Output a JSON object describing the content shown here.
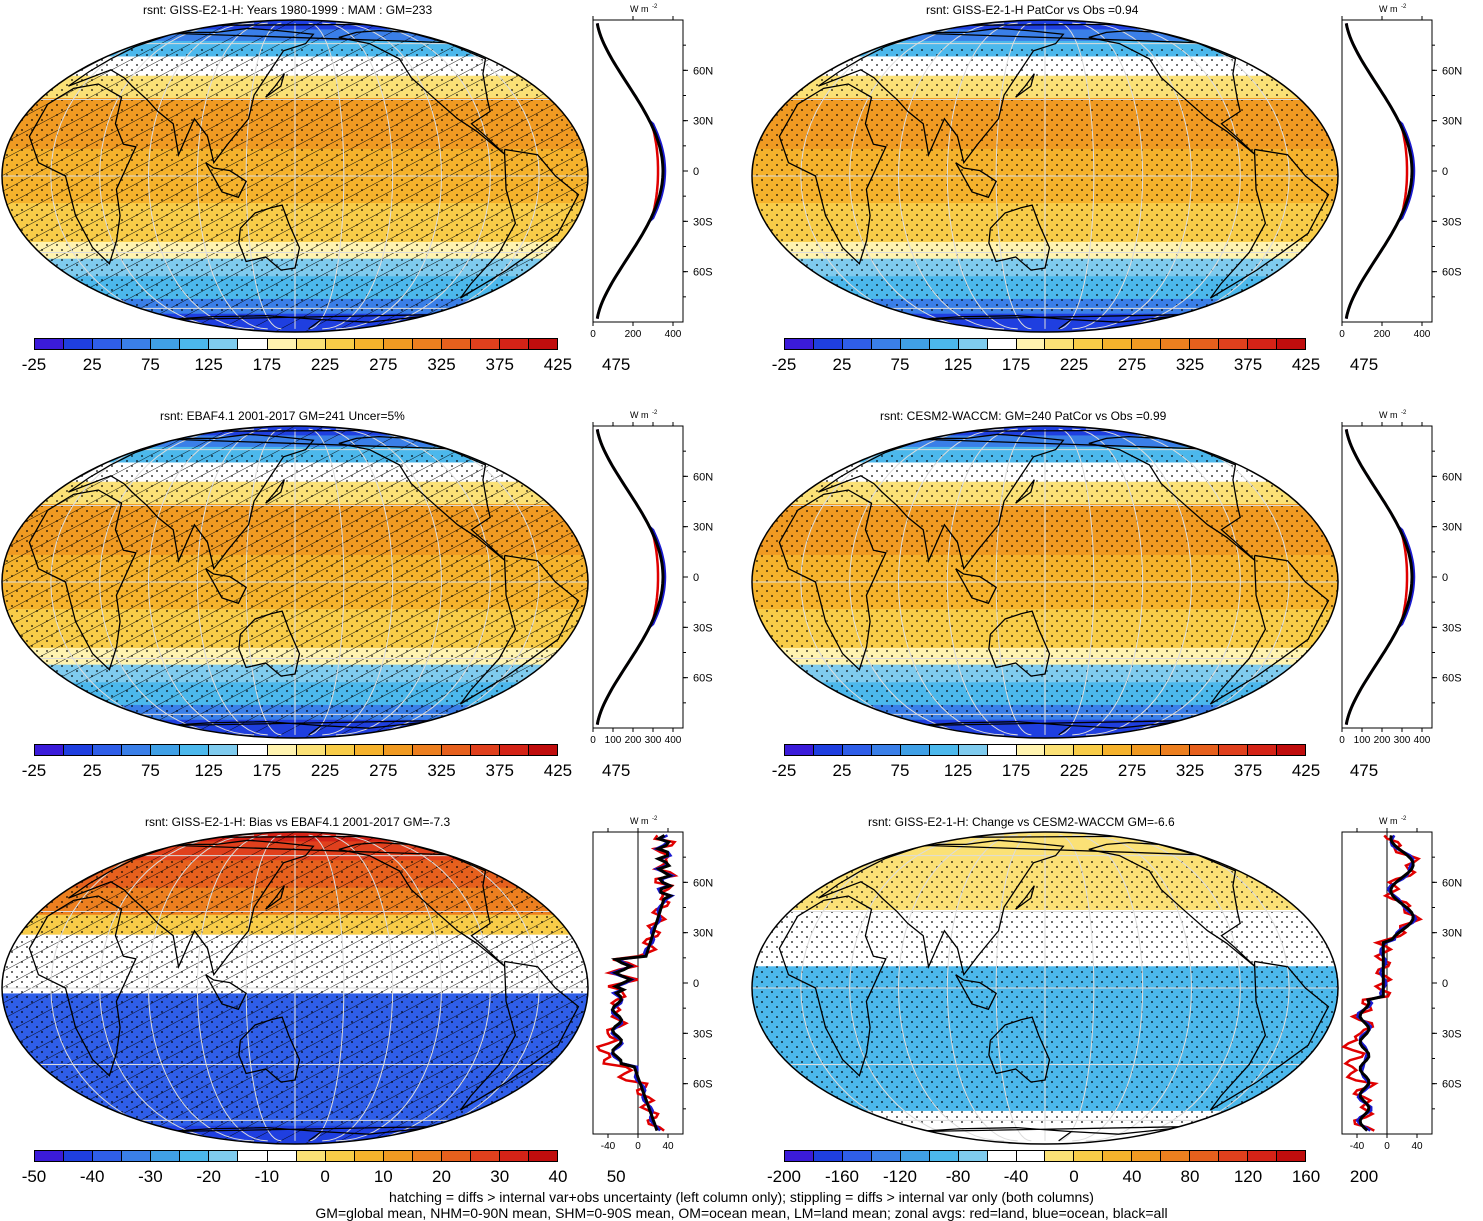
{
  "panels": [
    {
      "id": "p1",
      "title": "rsnt: GISS-E2-1-H: Years 1980-1999 : MAM : GM=233",
      "scale": "abs",
      "hatch": true,
      "stipple": true,
      "cb_labels": [
        "-25",
        "25",
        "75",
        "125",
        "175",
        "225",
        "275",
        "325",
        "375",
        "425",
        "475"
      ],
      "z_xticks": [
        "0",
        "200",
        "400"
      ],
      "z_range": [
        0,
        450
      ],
      "z_zero": false
    },
    {
      "id": "p2",
      "title": "rsnt: GISS-E2-1-H PatCor vs Obs =0.94",
      "scale": "abs",
      "hatch": false,
      "stipple": true,
      "cb_labels": [
        "-25",
        "25",
        "75",
        "125",
        "175",
        "225",
        "275",
        "325",
        "375",
        "425",
        "475"
      ],
      "z_xticks": [
        "0",
        "200",
        "400"
      ],
      "z_range": [
        0,
        450
      ],
      "z_zero": false
    },
    {
      "id": "p3",
      "title": "rsnt: EBAF4.1 2001-2017 GM=241 Uncer=5%",
      "scale": "abs",
      "hatch": true,
      "stipple": true,
      "cb_labels": [
        "-25",
        "25",
        "75",
        "125",
        "175",
        "225",
        "275",
        "325",
        "375",
        "425",
        "475"
      ],
      "z_xticks": [
        "0",
        "100",
        "200",
        "300",
        "400"
      ],
      "z_range": [
        0,
        450
      ],
      "z_zero": false
    },
    {
      "id": "p4",
      "title": "rsnt: CESM2-WACCM: GM=240 PatCor vs Obs =0.99",
      "scale": "abs",
      "hatch": false,
      "stipple": true,
      "cb_labels": [
        "-25",
        "25",
        "75",
        "125",
        "175",
        "225",
        "275",
        "325",
        "375",
        "425",
        "475"
      ],
      "z_xticks": [
        "0",
        "100",
        "200",
        "300",
        "400"
      ],
      "z_range": [
        0,
        450
      ],
      "z_zero": false
    },
    {
      "id": "p5",
      "title": "rsnt: GISS-E2-1-H: Bias vs EBAF4.1 2001-2017 GM=-7.3",
      "scale": "bias",
      "hatch": true,
      "stipple": true,
      "cb_labels": [
        "-50",
        "-40",
        "-30",
        "-20",
        "-10",
        "0",
        "10",
        "20",
        "30",
        "40",
        "50"
      ],
      "z_xticks": [
        "-40",
        "0",
        "40"
      ],
      "z_range": [
        -60,
        60
      ],
      "z_zero": true
    },
    {
      "id": "p6",
      "title": "rsnt: GISS-E2-1-H: Change vs CESM2-WACCM GM=-6.6",
      "scale": "change",
      "hatch": false,
      "stipple": true,
      "cb_labels": [
        "-200",
        "-160",
        "-120",
        "-80",
        "-40",
        "0",
        "40",
        "80",
        "120",
        "160",
        "200"
      ],
      "z_xticks": [
        "-40",
        "0",
        "40"
      ],
      "z_range": [
        -60,
        60
      ],
      "z_zero": true
    }
  ],
  "lat_labels": [
    "60N",
    "30N",
    "0",
    "30S",
    "60S"
  ],
  "units_label": "W m",
  "units_exp": "-2",
  "palettes": {
    "abs": [
      "#3b1bd9",
      "#1f3fe0",
      "#2f5ee8",
      "#3a7fe8",
      "#40a0e6",
      "#4cb8ec",
      "#7fcbee",
      "#ffffff",
      "#fff3b0",
      "#fbe176",
      "#f8cc48",
      "#f5b22c",
      "#f09a22",
      "#ec7f1f",
      "#e6601d",
      "#e0401d",
      "#d42317",
      "#c00d0d"
    ],
    "bias": [
      "#3b1bd9",
      "#1f3fe0",
      "#2f5ee8",
      "#3a7fe8",
      "#40a0e6",
      "#4cb8ec",
      "#7fcbee",
      "#ffffff",
      "#ffffff",
      "#fbe176",
      "#f8cc48",
      "#f5b22c",
      "#f09a22",
      "#ec7f1f",
      "#e6601d",
      "#e0401d",
      "#d42317",
      "#c00d0d"
    ],
    "change": [
      "#3b1bd9",
      "#1f3fe0",
      "#2f5ee8",
      "#3a7fe8",
      "#40a0e6",
      "#4cb8ec",
      "#7fcbee",
      "#ffffff",
      "#ffffff",
      "#fbe176",
      "#f8cc48",
      "#f5b22c",
      "#f09a22",
      "#ec7f1f",
      "#e6601d",
      "#e0401d",
      "#d42317",
      "#c00d0d"
    ]
  },
  "footer": [
    "hatching = diffs > internal var+obs uncertainty (left column only); stippling = diffs > internal var only (both columns)",
    "GM=global mean, NHM=0-90N mean, SHM=0-90S mean, OM=ocean mean, LM=land mean; zonal avgs: red=land, blue=ocean, black=all"
  ]
}
